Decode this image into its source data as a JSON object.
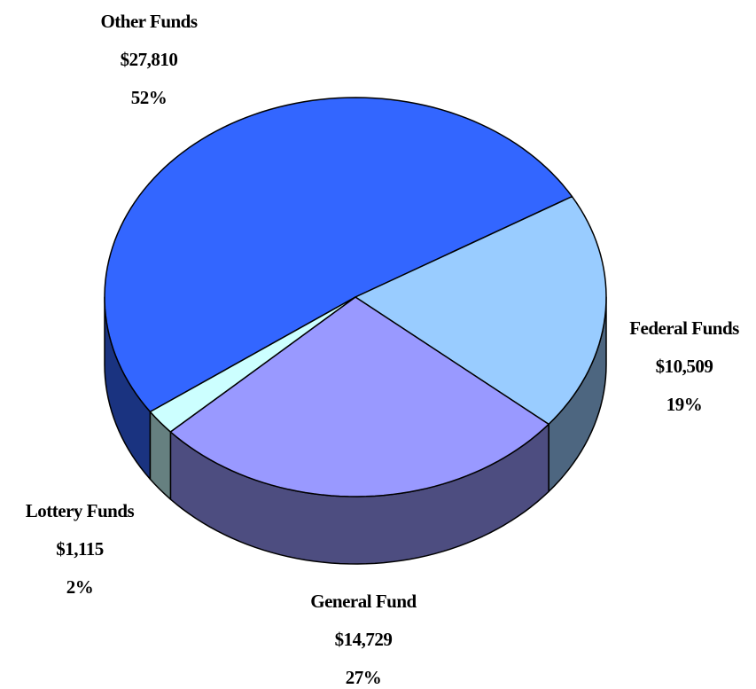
{
  "chart_data": {
    "type": "pie",
    "categories": [
      "Other Funds",
      "Federal Funds",
      "General Fund",
      "Lottery Funds"
    ],
    "values": [
      27810,
      10509,
      14729,
      1115
    ],
    "value_labels": [
      "$27,810",
      "$10,509",
      "$14,729",
      "$1,115"
    ],
    "percent_labels": [
      "52%",
      "19%",
      "27%",
      "2%"
    ],
    "colors": [
      "#3366ff",
      "#99ccff",
      "#9999ff",
      "#ccffff"
    ]
  }
}
